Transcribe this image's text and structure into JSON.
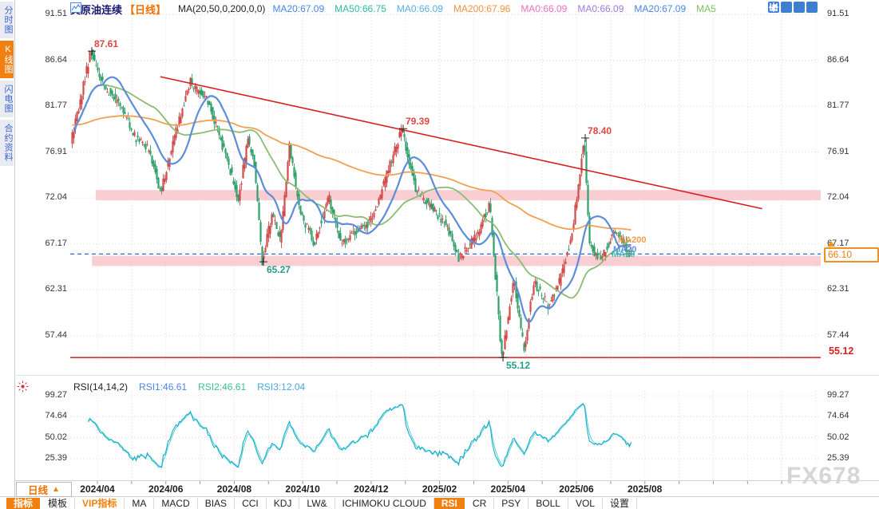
{
  "app": {
    "watermark": "FX678"
  },
  "sidebar": {
    "items": [
      {
        "label": "分时图",
        "active": false
      },
      {
        "label": "K线图",
        "active": true
      },
      {
        "label": "闪电图",
        "active": false
      },
      {
        "label": "合约资料",
        "active": false
      }
    ]
  },
  "header": {
    "symbol": "美原油连续",
    "period_tag": "【日线】",
    "ma_formula": "MA(20,50,0,200,0,0)",
    "ma_values": [
      {
        "label": "MA20:67.09",
        "color": "#4a86e8"
      },
      {
        "label": "MA50:66.75",
        "color": "#2eb8a8"
      },
      {
        "label": "MA0:66.09",
        "color": "#57b0e8"
      },
      {
        "label": "MA200:67.96",
        "color": "#f5923e"
      },
      {
        "label": "MA0:66.09",
        "color": "#ef6ec0"
      },
      {
        "label": "MA0:66.09",
        "color": "#9b7ce0"
      },
      {
        "label": "MA20:67.09",
        "color": "#4a86e8"
      },
      {
        "label": "MA5",
        "color": "#7cc05c"
      }
    ],
    "window_icons": [
      "crosshair",
      "axis-fit",
      "axis-scale",
      "collapse-right"
    ]
  },
  "rsi_header": {
    "formula": "RSI(14,14,2)",
    "values": [
      {
        "label": "RSI1:46.61",
        "color": "#4a86e8"
      },
      {
        "label": "RSI2:46.61",
        "color": "#3cc08c"
      },
      {
        "label": "RSI3:12.04",
        "color": "#45a8dc"
      }
    ]
  },
  "x_axis": {
    "period_button": "日线",
    "labels": [
      "2024/04",
      "2024/06",
      "2024/08",
      "2024/10",
      "2024/12",
      "2025/02",
      "2025/04",
      "2025/06",
      "2025/08"
    ]
  },
  "toolbar": {
    "items": [
      {
        "label": "指标",
        "style": "active"
      },
      {
        "label": "模板",
        "style": ""
      },
      {
        "label": "VIP指标",
        "style": "vip"
      },
      {
        "label": "MA",
        "style": ""
      },
      {
        "label": "MACD",
        "style": ""
      },
      {
        "label": "BIAS",
        "style": ""
      },
      {
        "label": "CCI",
        "style": ""
      },
      {
        "label": "KDJ",
        "style": ""
      },
      {
        "label": "LW&",
        "style": ""
      },
      {
        "label": "ICHIMOKU CLOUD",
        "style": ""
      },
      {
        "label": "RSI",
        "style": "active"
      },
      {
        "label": "CR",
        "style": ""
      },
      {
        "label": "PSY",
        "style": ""
      },
      {
        "label": "BOLL",
        "style": ""
      },
      {
        "label": "VOL",
        "style": ""
      },
      {
        "label": "设置",
        "style": ""
      }
    ]
  },
  "chart_data": {
    "type": "candlestick",
    "title": "美原油连续 日线 K线图",
    "price_axis_ticks": [
      91.51,
      86.64,
      81.77,
      76.91,
      72.04,
      67.17,
      62.31,
      57.44
    ],
    "price_range": [
      54.0,
      92.2
    ],
    "current_price": "66.10",
    "support_price_label": "55.12",
    "price_path": [
      {
        "date": "2024/03/08",
        "pos": 0.0021,
        "price": 77.8
      },
      {
        "date": "2024/03/18",
        "pos": 0.0128,
        "price": 81.5
      },
      {
        "date": "2024/04/05",
        "pos": 0.0287,
        "price": 87.61
      },
      {
        "date": "2024/04/15",
        "pos": 0.0468,
        "price": 83.8
      },
      {
        "date": "2024/04/26",
        "pos": 0.0681,
        "price": 82.0
      },
      {
        "date": "2024/05/10",
        "pos": 0.0894,
        "price": 78.2
      },
      {
        "date": "2024/05/21",
        "pos": 0.1064,
        "price": 77.2
      },
      {
        "date": "2024/06/04",
        "pos": 0.1223,
        "price": 72.5
      },
      {
        "date": "2024/06/12",
        "pos": 0.1383,
        "price": 78.0
      },
      {
        "date": "2024/07/03",
        "pos": 0.1617,
        "price": 84.3
      },
      {
        "date": "2024/07/15",
        "pos": 0.1851,
        "price": 82.3
      },
      {
        "date": "2024/07/29",
        "pos": 0.2128,
        "price": 75.5
      },
      {
        "date": "2024/08/05",
        "pos": 0.2255,
        "price": 71.9
      },
      {
        "date": "2024/08/13",
        "pos": 0.2383,
        "price": 78.2
      },
      {
        "date": "2024/08/20",
        "pos": 0.2468,
        "price": 75.8
      },
      {
        "date": "2024/09/10",
        "pos": 0.2574,
        "price": 65.27
      },
      {
        "date": "2024/09/19",
        "pos": 0.2702,
        "price": 70.3
      },
      {
        "date": "2024/09/27",
        "pos": 0.2819,
        "price": 67.5
      },
      {
        "date": "2024/10/07",
        "pos": 0.2936,
        "price": 77.9
      },
      {
        "date": "2024/10/16",
        "pos": 0.3064,
        "price": 70.8
      },
      {
        "date": "2024/10/29",
        "pos": 0.3266,
        "price": 67.2
      },
      {
        "date": "2024/11/07",
        "pos": 0.3457,
        "price": 72.3
      },
      {
        "date": "2024/11/18",
        "pos": 0.3617,
        "price": 67.3
      },
      {
        "date": "2024/12/02",
        "pos": 0.3851,
        "price": 68.5
      },
      {
        "date": "2024/12/13",
        "pos": 0.4043,
        "price": 69.8
      },
      {
        "date": "2024/12/26",
        "pos": 0.4191,
        "price": 73.5
      },
      {
        "date": "2025/01/15",
        "pos": 0.4436,
        "price": 79.39
      },
      {
        "date": "2025/01/28",
        "pos": 0.4617,
        "price": 73.0
      },
      {
        "date": "2025/02/12",
        "pos": 0.4862,
        "price": 70.8
      },
      {
        "date": "2025/02/25",
        "pos": 0.5043,
        "price": 68.9
      },
      {
        "date": "2025/03/05",
        "pos": 0.5181,
        "price": 65.6
      },
      {
        "date": "2025/03/20",
        "pos": 0.5426,
        "price": 67.9
      },
      {
        "date": "2025/04/02",
        "pos": 0.5606,
        "price": 71.5
      },
      {
        "date": "2025/04/09",
        "pos": 0.5766,
        "price": 55.12
      },
      {
        "date": "2025/04/22",
        "pos": 0.5926,
        "price": 63.3
      },
      {
        "date": "2025/05/01",
        "pos": 0.6064,
        "price": 55.9
      },
      {
        "date": "2025/05/12",
        "pos": 0.6191,
        "price": 63.2
      },
      {
        "date": "2025/05/23",
        "pos": 0.6383,
        "price": 60.7
      },
      {
        "date": "2025/06/03",
        "pos": 0.6543,
        "price": 63.3
      },
      {
        "date": "2025/06/12",
        "pos": 0.6702,
        "price": 68.2
      },
      {
        "date": "2025/06/20",
        "pos": 0.6862,
        "price": 78.4
      },
      {
        "date": "2025/06/25",
        "pos": 0.6936,
        "price": 66.8
      },
      {
        "date": "2025/07/03",
        "pos": 0.7096,
        "price": 65.6
      },
      {
        "date": "2025/07/14",
        "pos": 0.7277,
        "price": 68.7
      },
      {
        "date": "2025/07/22",
        "pos": 0.7468,
        "price": 66.1
      }
    ],
    "annotations": {
      "swing_labels": [
        {
          "pos": 0.0287,
          "price": 87.61,
          "text": "87.61",
          "color": "#e04545",
          "place": "above"
        },
        {
          "pos": 0.4436,
          "price": 79.39,
          "text": "79.39",
          "color": "#e04545",
          "place": "above"
        },
        {
          "pos": 0.6862,
          "price": 78.4,
          "text": "78.40",
          "color": "#e04545",
          "place": "above"
        },
        {
          "pos": 0.2574,
          "price": 65.27,
          "text": "65.27",
          "color": "#21a186",
          "place": "below"
        },
        {
          "pos": 0.5766,
          "price": 55.12,
          "text": "55.12",
          "color": "#21a186",
          "place": "below"
        }
      ],
      "trendline": {
        "pos1": 0.12,
        "price1": 84.9,
        "pos2": 0.922,
        "price2": 70.9,
        "color": "#d42020"
      },
      "support_line": {
        "price": 55.12,
        "color": "#d42020"
      },
      "current_price_line": {
        "price": 66.1,
        "color": "#2f6bd8",
        "style": "dashed"
      },
      "zones": [
        {
          "price_top": 72.88,
          "price_bottom": 71.79,
          "pos_start": 0.034,
          "color": "#f8ced3"
        },
        {
          "price_top": 65.91,
          "price_bottom": 64.82,
          "pos_start": 0.029,
          "color": "#f8ced3"
        }
      ],
      "ma_line_labels": [
        {
          "text": "MA200",
          "color": "#f5923e"
        },
        {
          "text": "MA20",
          "color": "#4a86e8"
        },
        {
          "text": "MA50",
          "color": "#2eb8a8"
        }
      ]
    },
    "moving_averages": [
      {
        "name": "MA20",
        "window": 20,
        "color": "#5b8dd9"
      },
      {
        "name": "MA50",
        "window": 50,
        "color": "#8cbb72"
      },
      {
        "name": "MA200",
        "window": 200,
        "color": "#f0a050"
      }
    ],
    "indicators": {
      "rsi": {
        "formula": "RSI(14,14,2)",
        "last_values": [
          46.61,
          46.61,
          12.04
        ],
        "axis_ticks": [
          99.27,
          74.64,
          50.02,
          25.39
        ],
        "color": "#12b0c8"
      }
    }
  }
}
